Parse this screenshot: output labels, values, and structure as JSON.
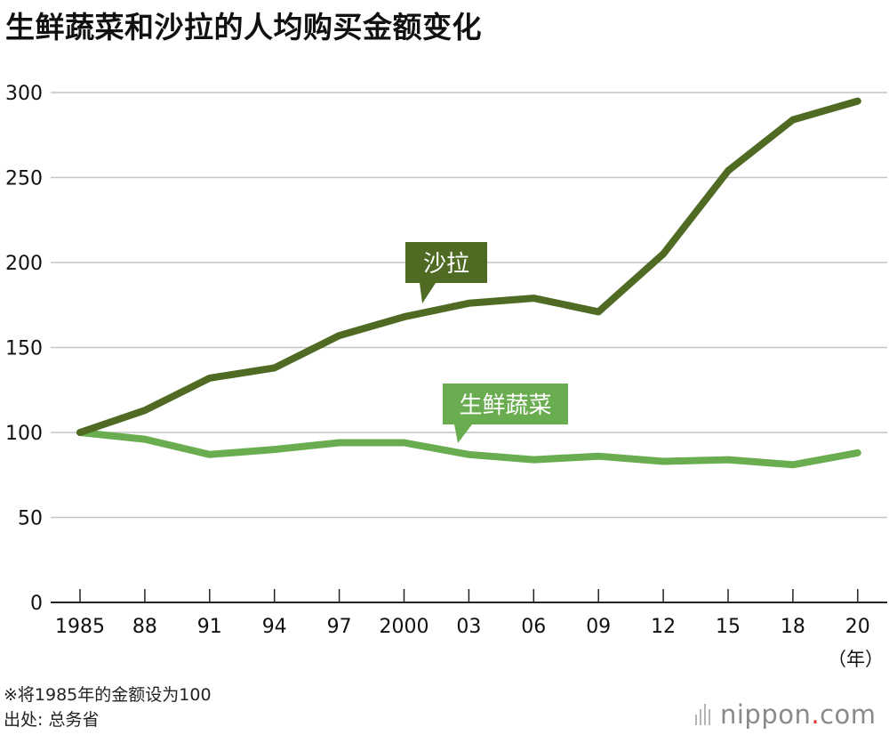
{
  "chart_data": {
    "type": "line",
    "title": "生鲜蔬菜和沙拉的人均购买金额变化",
    "xlabel": "（年）",
    "ylabel": "",
    "ylim": [
      0,
      300
    ],
    "yticks": [
      0,
      50,
      100,
      150,
      200,
      250,
      300
    ],
    "categories": [
      "1985",
      "88",
      "91",
      "94",
      "97",
      "2000",
      "03",
      "06",
      "09",
      "12",
      "15",
      "18",
      "20"
    ],
    "series": [
      {
        "name": "沙拉",
        "color": "#4f6a23",
        "values": [
          100,
          113,
          132,
          138,
          157,
          168,
          176,
          179,
          171,
          205,
          254,
          284,
          295
        ]
      },
      {
        "name": "生鲜蔬菜",
        "color": "#6aad50",
        "values": [
          100,
          96,
          87,
          90,
          94,
          94,
          87,
          84,
          86,
          83,
          84,
          81,
          88
        ]
      }
    ],
    "grid": true,
    "note": "※将1985年的金额设为100",
    "source": "出处: 总务省"
  },
  "branding": {
    "logo_text": "nippon",
    "logo_dot": ".",
    "logo_suffix": "com",
    "accent_color": "#e4322b"
  }
}
